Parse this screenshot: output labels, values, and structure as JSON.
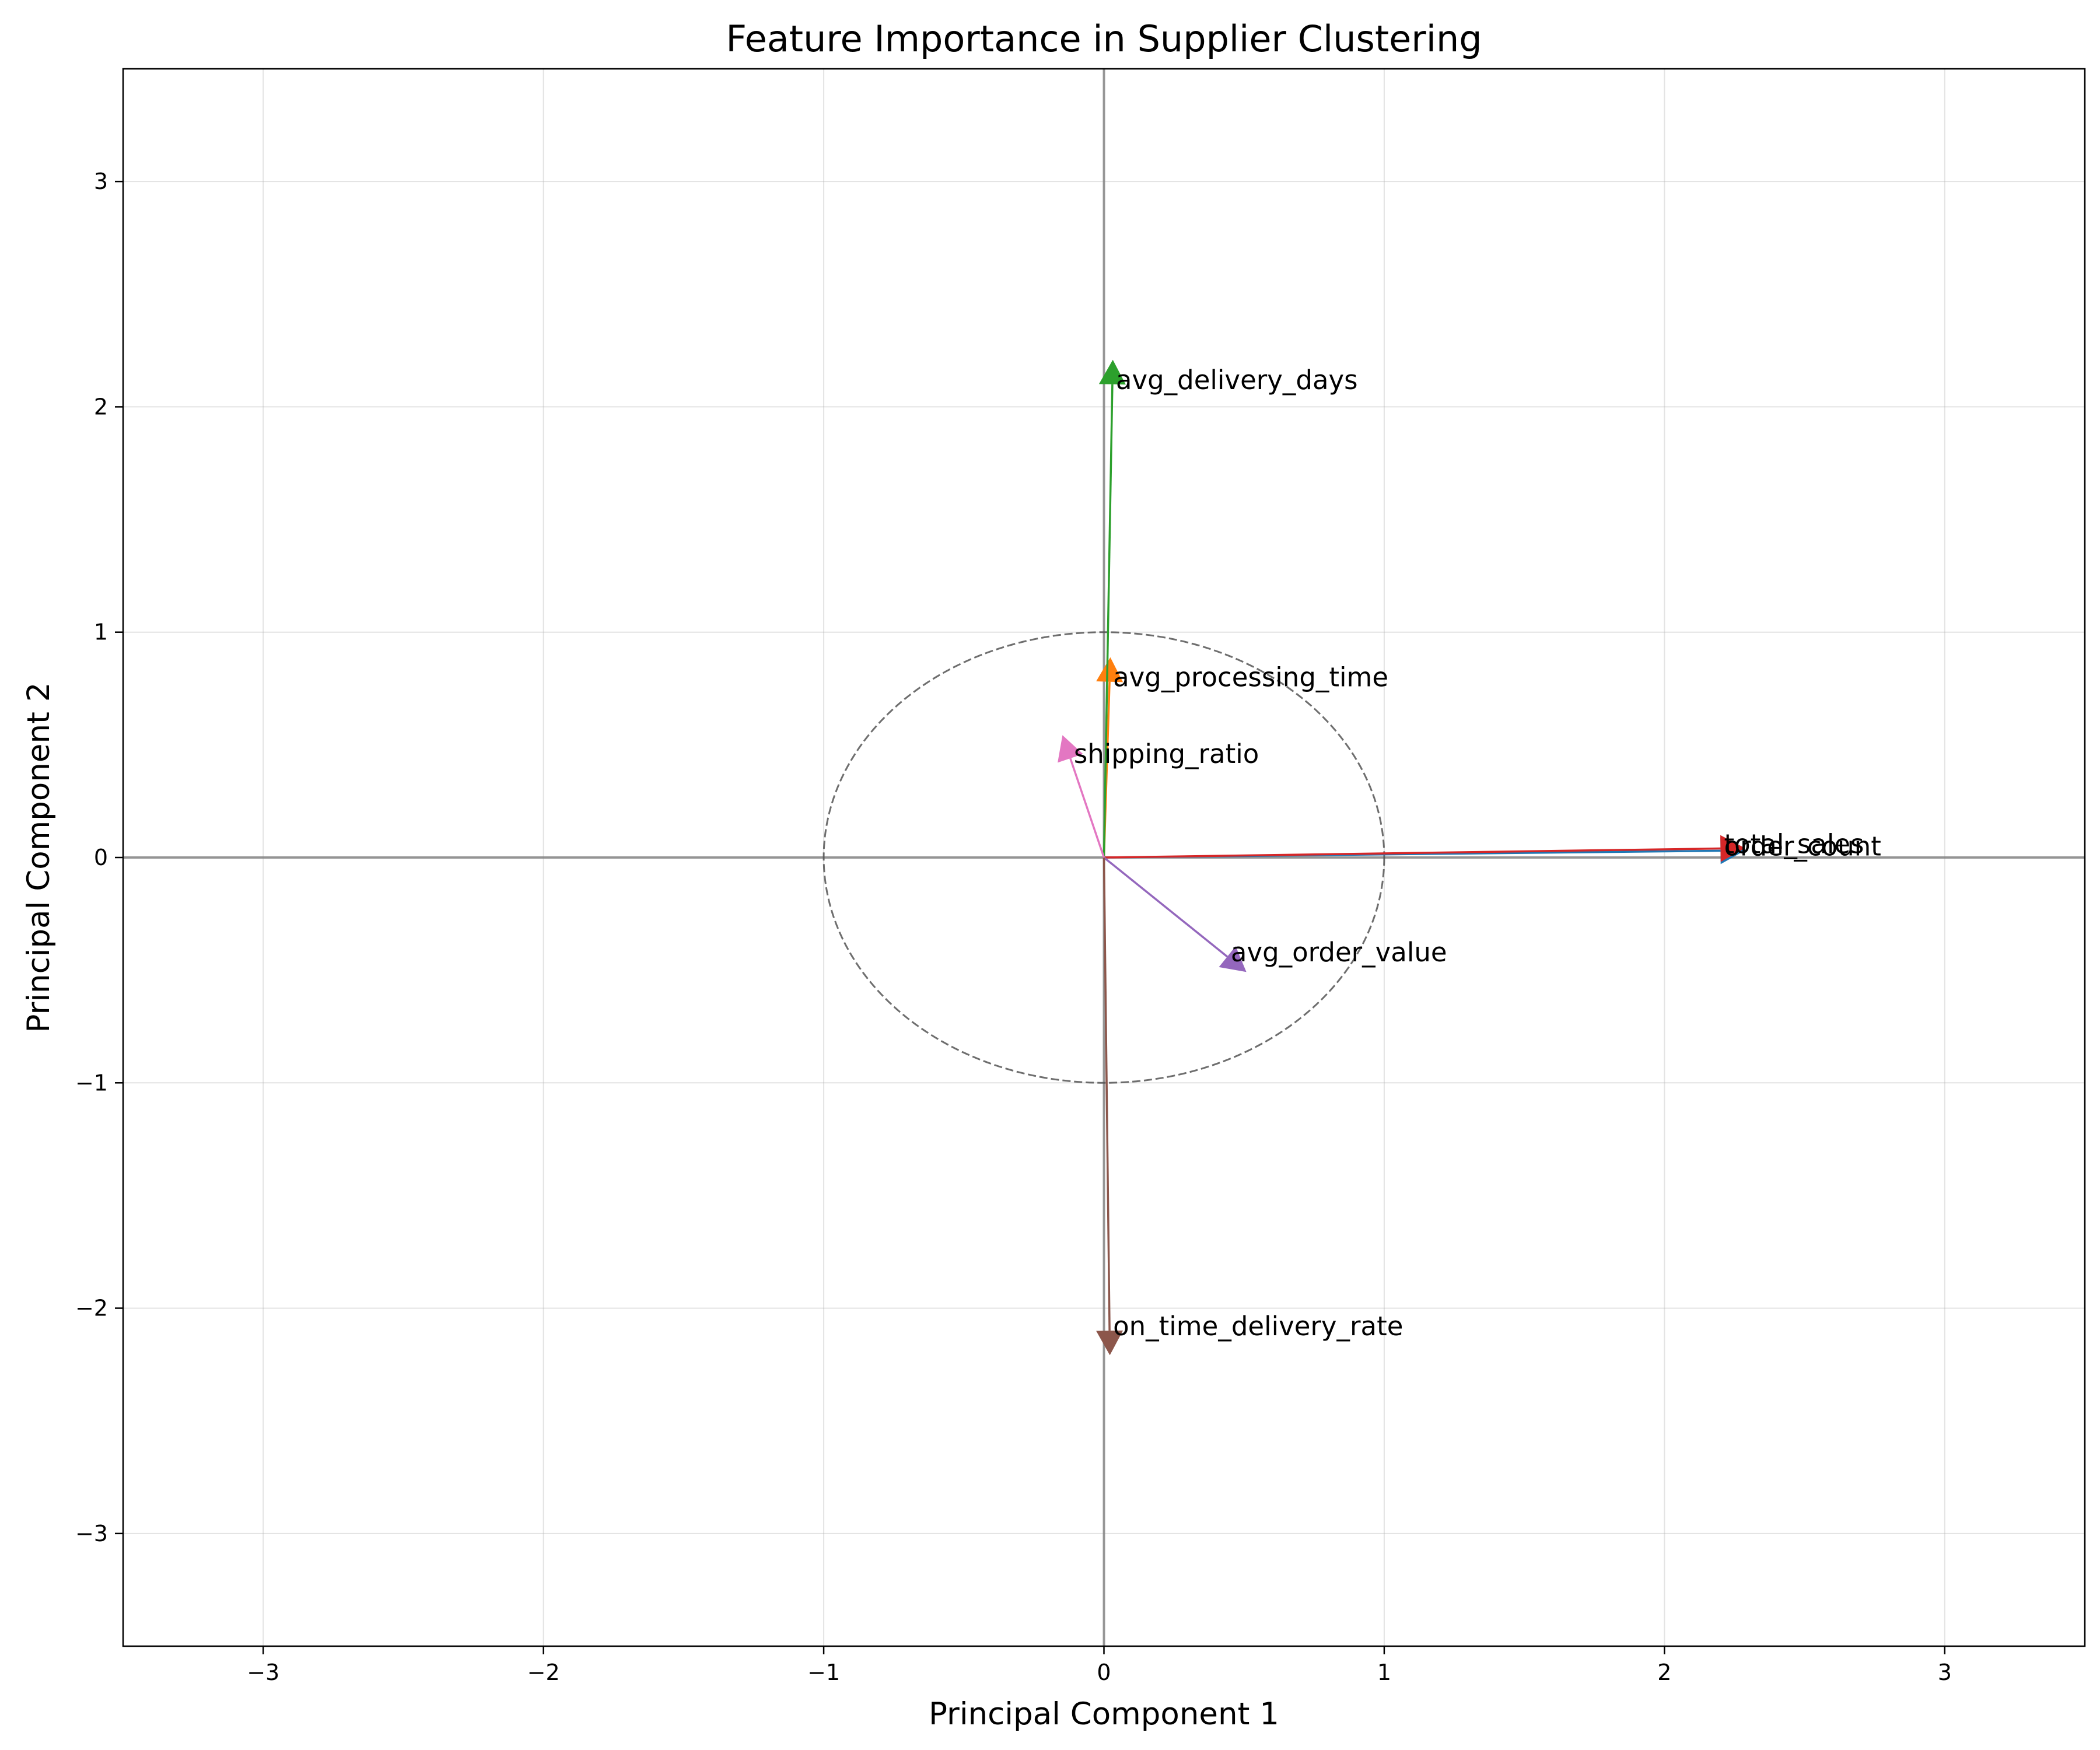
{
  "chart_data": {
    "type": "biplot",
    "title": "Feature Importance in Supplier Clustering",
    "xlabel": "Principal Component 1",
    "ylabel": "Principal Component 2",
    "xlim": [
      -3.5,
      3.5
    ],
    "ylim": [
      -3.5,
      3.5
    ],
    "grid": true,
    "x_ticks": [
      -3,
      -2,
      -1,
      0,
      1,
      2,
      3
    ],
    "y_ticks": [
      -3,
      -2,
      -1,
      0,
      1,
      2,
      3
    ],
    "x_tick_labels": [
      "−3",
      "−2",
      "−1",
      "0",
      "1",
      "2",
      "3"
    ],
    "y_tick_labels": [
      "−3",
      "−2",
      "−1",
      "0",
      "1",
      "2",
      "3"
    ],
    "unit_circle_radius": 1,
    "loadings": [
      {
        "name": "order_count",
        "x": 2.2,
        "y": 0.03,
        "color": "#1f77b4"
      },
      {
        "name": "avg_processing_time",
        "x": 0.02,
        "y": 0.78,
        "color": "#ff7f0e"
      },
      {
        "name": "avg_delivery_days",
        "x": 0.03,
        "y": 2.1,
        "color": "#2ca02c"
      },
      {
        "name": "total_sales",
        "x": 2.2,
        "y": 0.04,
        "color": "#d62728"
      },
      {
        "name": "avg_order_value",
        "x": 0.44,
        "y": -0.44,
        "color": "#9467bd"
      },
      {
        "name": "on_time_delivery_rate",
        "x": 0.02,
        "y": -2.1,
        "color": "#8c564b"
      },
      {
        "name": "shipping_ratio",
        "x": -0.12,
        "y": 0.44,
        "color": "#e377c2"
      }
    ]
  }
}
